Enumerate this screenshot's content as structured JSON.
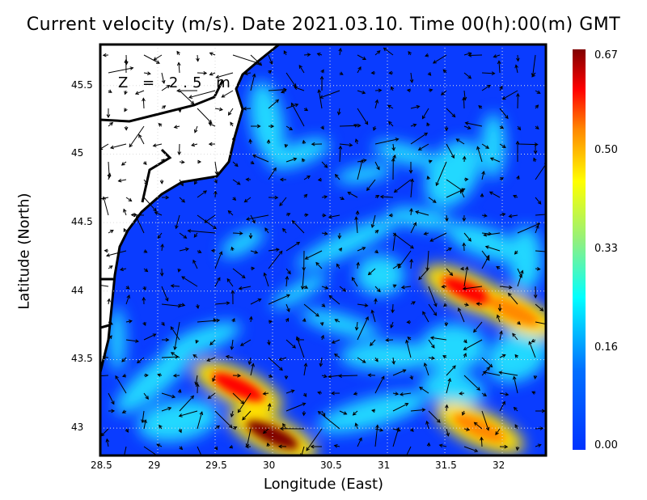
{
  "chart_data": {
    "type": "heatmap",
    "title": "Current velocity (m/s). Date 2021.03.10. Time 00(h):00(m) GMT",
    "xlabel": "Longitude (East)",
    "ylabel": "Latitude (North)",
    "annotation": "Z = 2.5 m",
    "xlim": [
      28.5,
      32.38
    ],
    "ylim": [
      42.8,
      45.8
    ],
    "x_ticks": [
      "28.5",
      "29",
      "29.5",
      "30",
      "30.5",
      "31",
      "31.5",
      "32"
    ],
    "y_ticks": [
      "43",
      "43.5",
      "44",
      "44.5",
      "45",
      "45.5"
    ],
    "grid": true,
    "colorbar": {
      "labels": [
        "0.67",
        "0.50",
        "0.33",
        "0.16",
        "0.00"
      ],
      "range": [
        0.0,
        0.67
      ],
      "colors": [
        "#0033ff",
        "#0099ff",
        "#00ffff",
        "#ffff00",
        "#ff8800",
        "#ff0000",
        "#800000"
      ]
    },
    "hotspots": [
      {
        "lon": 29.7,
        "lat": 43.3,
        "speed": 0.55
      },
      {
        "lon": 30.0,
        "lat": 42.95,
        "speed": 0.62
      },
      {
        "lon": 31.7,
        "lat": 44.0,
        "speed": 0.6
      },
      {
        "lon": 32.1,
        "lat": 43.85,
        "speed": 0.5
      },
      {
        "lon": 31.8,
        "lat": 43.0,
        "speed": 0.5
      }
    ]
  }
}
